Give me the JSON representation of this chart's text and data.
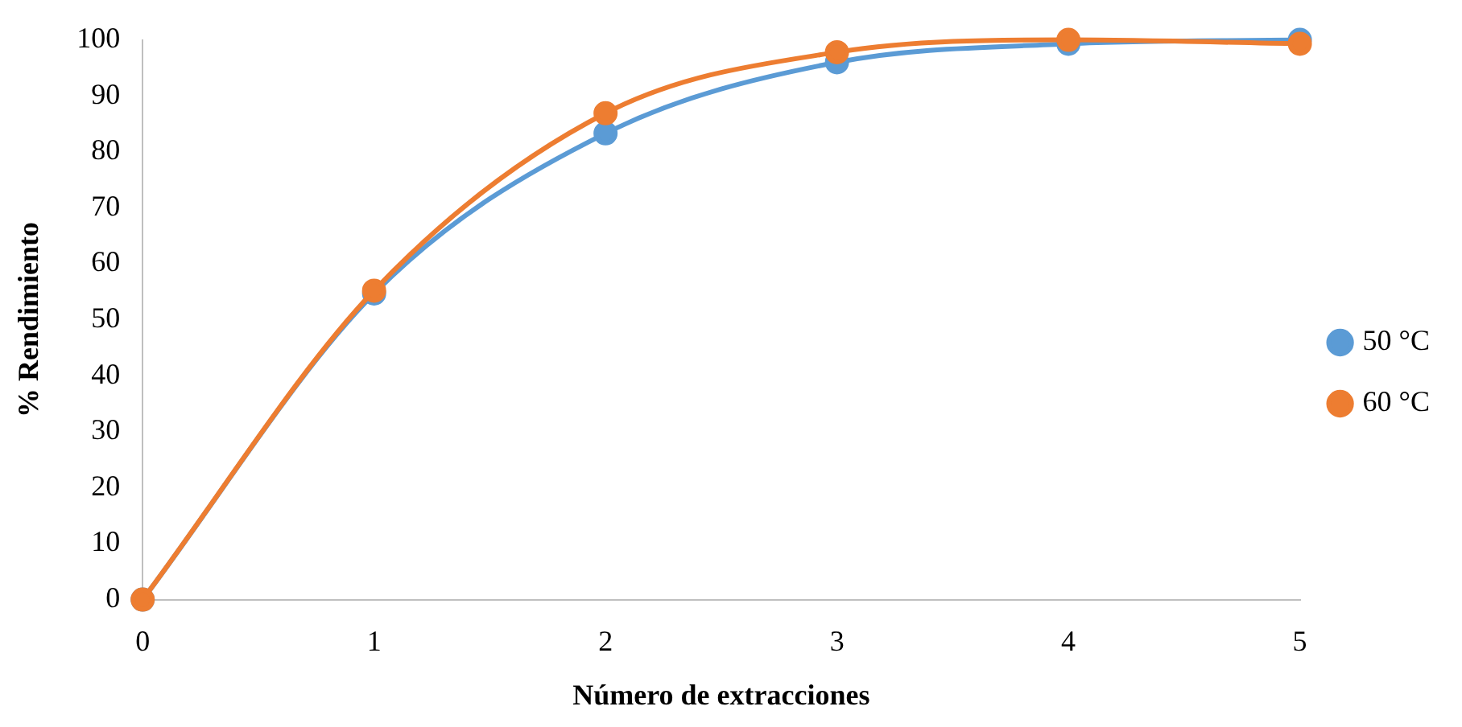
{
  "chart_data": {
    "type": "line",
    "xlabel": "Número de extracciones",
    "ylabel": "% Rendimiento",
    "x": [
      0,
      1,
      2,
      3,
      4,
      5
    ],
    "series": [
      {
        "name": "50 °C",
        "color": "#5b9bd5",
        "values": [
          0,
          54.7,
          83.3,
          96,
          99.3,
          100
        ]
      },
      {
        "name": "60 °C",
        "color": "#ed7d31",
        "values": [
          0,
          55.2,
          86.9,
          97.8,
          100,
          99.3
        ]
      }
    ],
    "xlim": [
      0,
      5
    ],
    "xticks": [
      0,
      1,
      2,
      3,
      4,
      5
    ],
    "ylim": [
      0,
      100
    ],
    "yticks": [
      0,
      10,
      20,
      30,
      40,
      50,
      60,
      70,
      80,
      90,
      100
    ],
    "grid": false,
    "legend": "right",
    "marker": "circle",
    "line_style": "solid"
  }
}
